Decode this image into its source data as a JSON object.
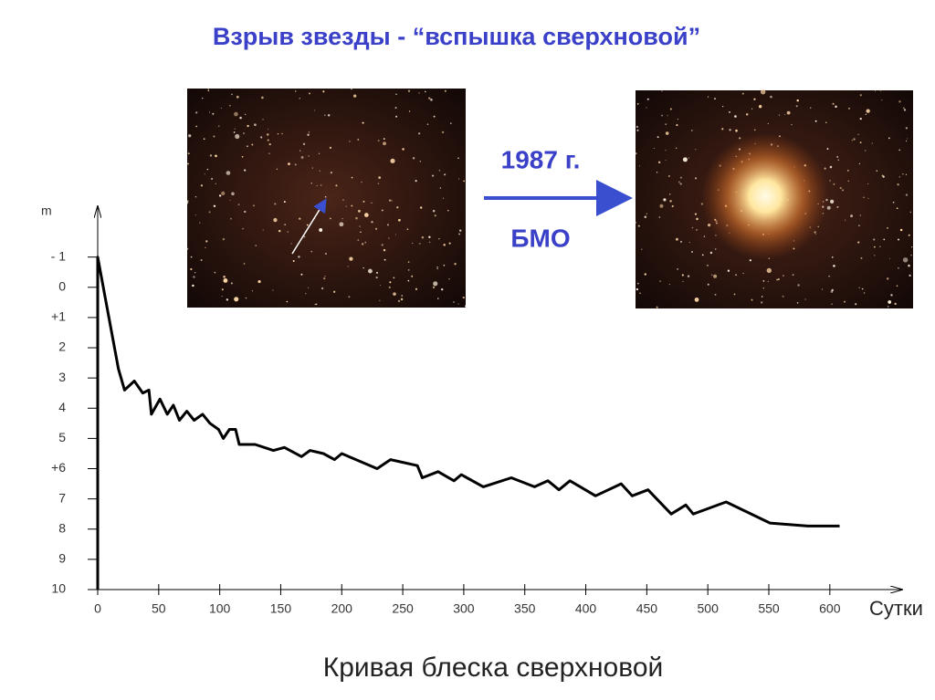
{
  "title": "Взрыв звезды  -  “вспышка сверхновой”",
  "annotations": {
    "year": "1987 г.",
    "place": "БМО"
  },
  "chart_data": {
    "type": "line",
    "title": "Кривая блеска сверхновой",
    "ylabel": "m",
    "xlabel": "Сутки",
    "color": "#000000",
    "x": [
      0,
      0,
      17,
      22,
      30,
      37,
      42,
      44,
      51,
      57,
      62,
      67,
      73,
      79,
      86,
      92,
      99,
      103,
      108,
      113,
      116,
      129,
      144,
      153,
      167,
      174,
      185,
      194,
      200,
      229,
      240,
      262,
      266,
      279,
      292,
      298,
      316,
      339,
      358,
      369,
      378,
      387,
      408,
      429,
      438,
      451,
      470,
      482,
      488,
      515,
      551,
      582,
      608
    ],
    "values": [
      10,
      -1,
      2.7,
      3.4,
      3.1,
      3.5,
      3.4,
      4.2,
      3.7,
      4.2,
      3.9,
      4.4,
      4.1,
      4.4,
      4.2,
      4.5,
      4.7,
      5.0,
      4.7,
      4.7,
      5.2,
      5.2,
      5.4,
      5.3,
      5.6,
      5.4,
      5.5,
      5.7,
      5.5,
      6.0,
      5.7,
      5.9,
      6.3,
      6.1,
      6.4,
      6.2,
      6.6,
      6.3,
      6.6,
      6.4,
      6.7,
      6.4,
      6.9,
      6.5,
      6.9,
      6.7,
      7.5,
      7.2,
      7.5,
      7.1,
      7.8,
      7.9,
      7.9
    ],
    "xlim": [
      0,
      657
    ],
    "ylim": [
      10,
      -2.5
    ],
    "xticks": [
      0,
      50,
      100,
      150,
      200,
      250,
      300,
      350,
      400,
      450,
      500,
      550,
      600
    ],
    "yticks": [
      {
        "value": -1,
        "label": "- 1"
      },
      0,
      {
        "value": 1,
        "label": "+1"
      },
      2,
      3,
      4,
      5,
      {
        "value": 6,
        "label": "+6"
      },
      7,
      8,
      9,
      10
    ]
  }
}
